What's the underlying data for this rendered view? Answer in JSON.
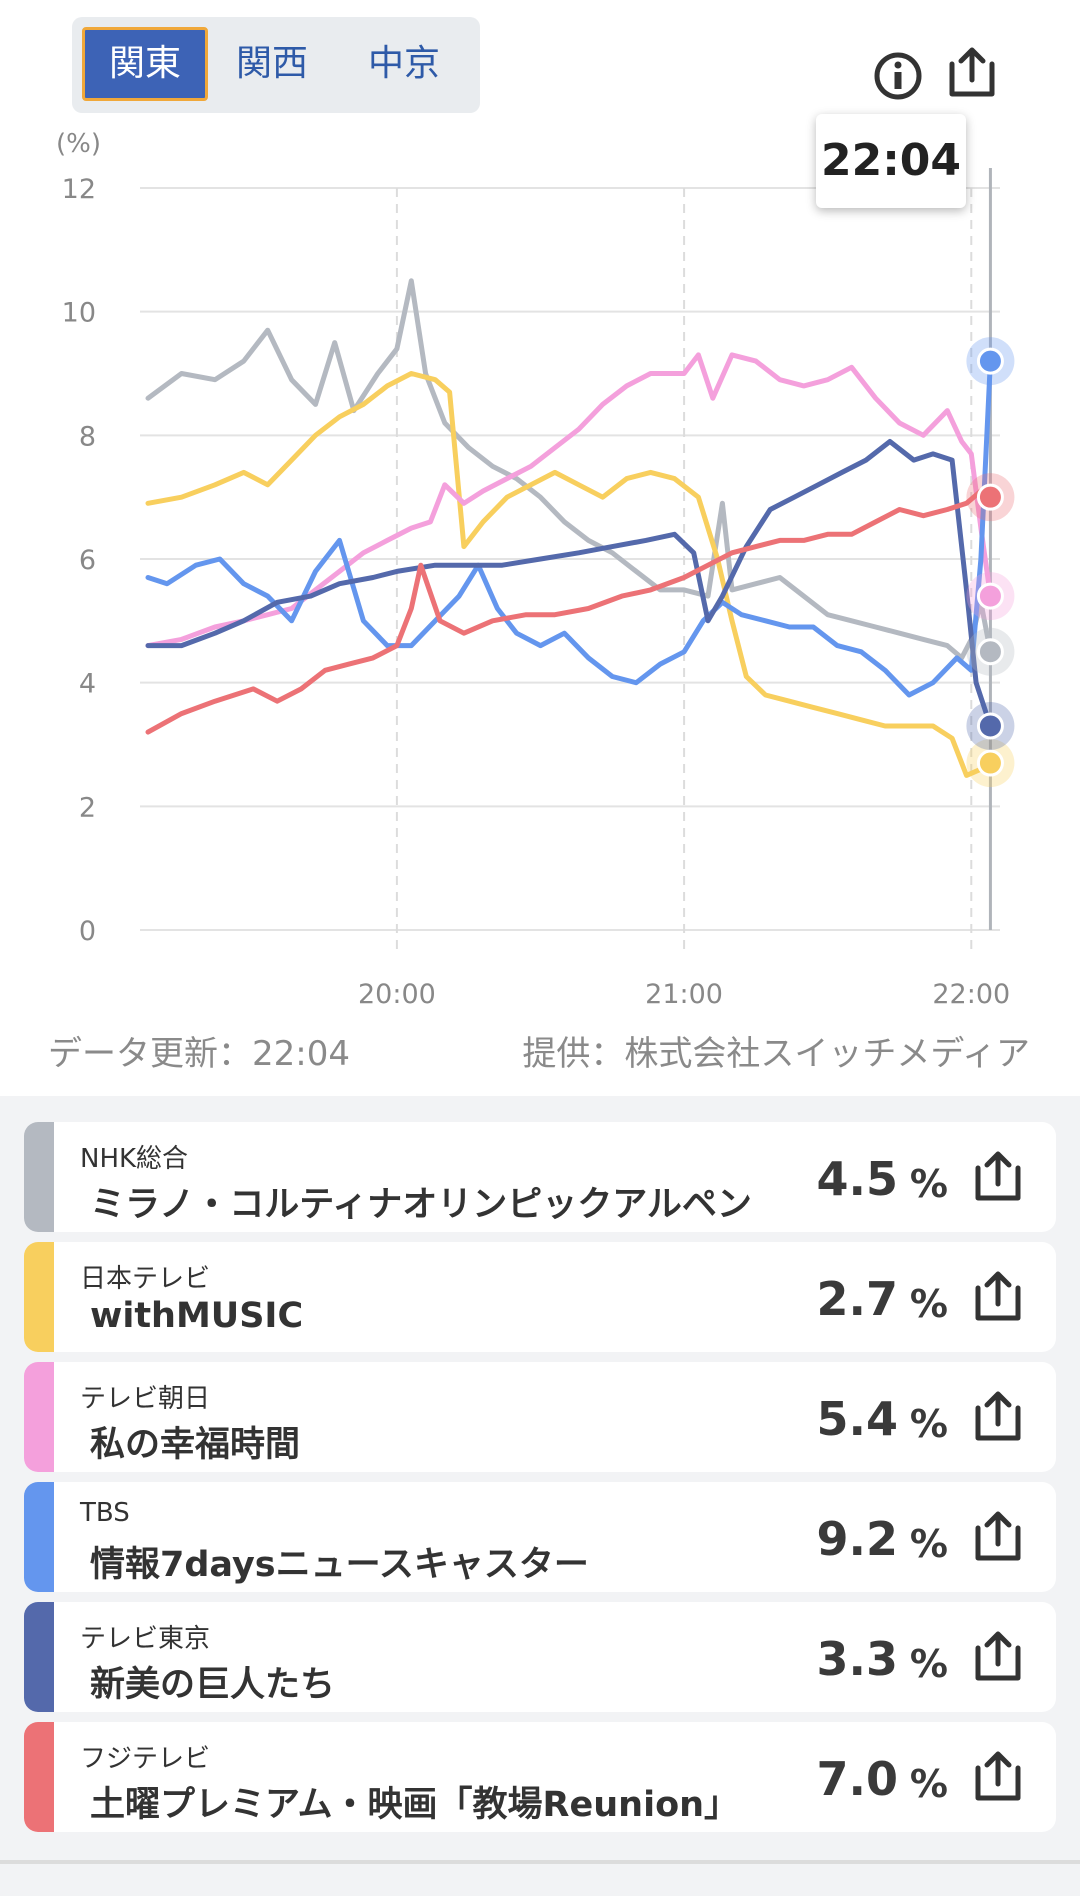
{
  "regions": {
    "tabs": [
      "関東",
      "関西",
      "中京"
    ],
    "active": 0
  },
  "header": {
    "info_icon": "info-circle-icon",
    "share_icon": "share-icon"
  },
  "tooltip": {
    "time": "22:04"
  },
  "chart_data": {
    "type": "line",
    "ylabel": "(%)",
    "ylim": [
      0,
      12
    ],
    "yticks": [
      0,
      2,
      4,
      6,
      8,
      10,
      12
    ],
    "xlim": [
      "19:08",
      "22:06"
    ],
    "xticks": [
      "20:00",
      "21:00",
      "22:00"
    ],
    "cursor": "22:04",
    "grid": true,
    "series": [
      {
        "name": "NHK総合",
        "color": "#b4b9c1",
        "points": [
          [
            "19:08",
            8.6
          ],
          [
            "19:15",
            9.0
          ],
          [
            "19:22",
            8.9
          ],
          [
            "19:28",
            9.2
          ],
          [
            "19:33",
            9.7
          ],
          [
            "19:38",
            8.9
          ],
          [
            "19:43",
            8.5
          ],
          [
            "19:47",
            9.5
          ],
          [
            "19:51",
            8.4
          ],
          [
            "19:56",
            9.0
          ],
          [
            "20:00",
            9.4
          ],
          [
            "20:03",
            10.5
          ],
          [
            "20:06",
            9.0
          ],
          [
            "20:10",
            8.2
          ],
          [
            "20:15",
            7.8
          ],
          [
            "20:20",
            7.5
          ],
          [
            "20:25",
            7.3
          ],
          [
            "20:30",
            7.0
          ],
          [
            "20:35",
            6.6
          ],
          [
            "20:40",
            6.3
          ],
          [
            "20:45",
            6.1
          ],
          [
            "20:50",
            5.8
          ],
          [
            "20:55",
            5.5
          ],
          [
            "21:00",
            5.5
          ],
          [
            "21:05",
            5.4
          ],
          [
            "21:08",
            6.9
          ],
          [
            "21:10",
            5.5
          ],
          [
            "21:15",
            5.6
          ],
          [
            "21:20",
            5.7
          ],
          [
            "21:25",
            5.4
          ],
          [
            "21:30",
            5.1
          ],
          [
            "21:35",
            5.0
          ],
          [
            "21:40",
            4.9
          ],
          [
            "21:45",
            4.8
          ],
          [
            "21:50",
            4.7
          ],
          [
            "21:55",
            4.6
          ],
          [
            "21:58",
            4.4
          ],
          [
            "22:00",
            4.7
          ],
          [
            "22:02",
            5.3
          ],
          [
            "22:04",
            4.5
          ]
        ]
      },
      {
        "name": "日本テレビ",
        "color": "#f8cf5e",
        "points": [
          [
            "19:08",
            6.9
          ],
          [
            "19:15",
            7.0
          ],
          [
            "19:22",
            7.2
          ],
          [
            "19:28",
            7.4
          ],
          [
            "19:33",
            7.2
          ],
          [
            "19:38",
            7.6
          ],
          [
            "19:43",
            8.0
          ],
          [
            "19:48",
            8.3
          ],
          [
            "19:53",
            8.5
          ],
          [
            "19:58",
            8.8
          ],
          [
            "20:03",
            9.0
          ],
          [
            "20:08",
            8.9
          ],
          [
            "20:11",
            8.7
          ],
          [
            "20:14",
            6.2
          ],
          [
            "20:18",
            6.6
          ],
          [
            "20:23",
            7.0
          ],
          [
            "20:28",
            7.2
          ],
          [
            "20:33",
            7.4
          ],
          [
            "20:38",
            7.2
          ],
          [
            "20:43",
            7.0
          ],
          [
            "20:48",
            7.3
          ],
          [
            "20:53",
            7.4
          ],
          [
            "20:58",
            7.3
          ],
          [
            "21:03",
            7.0
          ],
          [
            "21:07",
            6.0
          ],
          [
            "21:10",
            5.0
          ],
          [
            "21:13",
            4.1
          ],
          [
            "21:17",
            3.8
          ],
          [
            "21:22",
            3.7
          ],
          [
            "21:27",
            3.6
          ],
          [
            "21:32",
            3.5
          ],
          [
            "21:37",
            3.4
          ],
          [
            "21:42",
            3.3
          ],
          [
            "21:47",
            3.3
          ],
          [
            "21:52",
            3.3
          ],
          [
            "21:56",
            3.1
          ],
          [
            "21:59",
            2.5
          ],
          [
            "22:02",
            2.6
          ],
          [
            "22:04",
            2.7
          ]
        ]
      },
      {
        "name": "テレビ朝日",
        "color": "#f4a0dc",
        "points": [
          [
            "19:08",
            4.6
          ],
          [
            "19:15",
            4.7
          ],
          [
            "19:22",
            4.9
          ],
          [
            "19:28",
            5.0
          ],
          [
            "19:33",
            5.1
          ],
          [
            "19:38",
            5.2
          ],
          [
            "19:43",
            5.5
          ],
          [
            "19:48",
            5.8
          ],
          [
            "19:53",
            6.1
          ],
          [
            "19:58",
            6.3
          ],
          [
            "20:03",
            6.5
          ],
          [
            "20:07",
            6.6
          ],
          [
            "20:10",
            7.2
          ],
          [
            "20:14",
            6.9
          ],
          [
            "20:18",
            7.1
          ],
          [
            "20:23",
            7.3
          ],
          [
            "20:28",
            7.5
          ],
          [
            "20:33",
            7.8
          ],
          [
            "20:38",
            8.1
          ],
          [
            "20:43",
            8.5
          ],
          [
            "20:48",
            8.8
          ],
          [
            "20:53",
            9.0
          ],
          [
            "20:57",
            9.0
          ],
          [
            "21:00",
            9.0
          ],
          [
            "21:03",
            9.3
          ],
          [
            "21:06",
            8.6
          ],
          [
            "21:10",
            9.3
          ],
          [
            "21:15",
            9.2
          ],
          [
            "21:20",
            8.9
          ],
          [
            "21:25",
            8.8
          ],
          [
            "21:30",
            8.9
          ],
          [
            "21:35",
            9.1
          ],
          [
            "21:40",
            8.6
          ],
          [
            "21:45",
            8.2
          ],
          [
            "21:50",
            8.0
          ],
          [
            "21:55",
            8.4
          ],
          [
            "21:58",
            7.9
          ],
          [
            "22:00",
            7.7
          ],
          [
            "22:02",
            6.5
          ],
          [
            "22:04",
            5.4
          ]
        ]
      },
      {
        "name": "TBS",
        "color": "#6496ee",
        "points": [
          [
            "19:08",
            5.7
          ],
          [
            "19:12",
            5.6
          ],
          [
            "19:18",
            5.9
          ],
          [
            "19:23",
            6.0
          ],
          [
            "19:28",
            5.6
          ],
          [
            "19:33",
            5.4
          ],
          [
            "19:38",
            5.0
          ],
          [
            "19:43",
            5.8
          ],
          [
            "19:48",
            6.3
          ],
          [
            "19:53",
            5.0
          ],
          [
            "19:58",
            4.6
          ],
          [
            "20:03",
            4.6
          ],
          [
            "20:08",
            5.0
          ],
          [
            "20:13",
            5.4
          ],
          [
            "20:17",
            5.9
          ],
          [
            "20:21",
            5.2
          ],
          [
            "20:25",
            4.8
          ],
          [
            "20:30",
            4.6
          ],
          [
            "20:35",
            4.8
          ],
          [
            "20:40",
            4.4
          ],
          [
            "20:45",
            4.1
          ],
          [
            "20:50",
            4.0
          ],
          [
            "20:55",
            4.3
          ],
          [
            "21:00",
            4.5
          ],
          [
            "21:04",
            5.0
          ],
          [
            "21:08",
            5.3
          ],
          [
            "21:12",
            5.1
          ],
          [
            "21:17",
            5.0
          ],
          [
            "21:22",
            4.9
          ],
          [
            "21:27",
            4.9
          ],
          [
            "21:32",
            4.6
          ],
          [
            "21:37",
            4.5
          ],
          [
            "21:42",
            4.2
          ],
          [
            "21:47",
            3.8
          ],
          [
            "21:52",
            4.0
          ],
          [
            "21:57",
            4.4
          ],
          [
            "22:00",
            4.2
          ],
          [
            "22:02",
            6.0
          ],
          [
            "22:04",
            9.2
          ]
        ]
      },
      {
        "name": "テレビ東京",
        "color": "#5469ab",
        "points": [
          [
            "19:08",
            4.6
          ],
          [
            "19:15",
            4.6
          ],
          [
            "19:22",
            4.8
          ],
          [
            "19:28",
            5.0
          ],
          [
            "19:35",
            5.3
          ],
          [
            "19:42",
            5.4
          ],
          [
            "19:48",
            5.6
          ],
          [
            "19:55",
            5.7
          ],
          [
            "20:00",
            5.8
          ],
          [
            "20:08",
            5.9
          ],
          [
            "20:15",
            5.9
          ],
          [
            "20:22",
            5.9
          ],
          [
            "20:30",
            6.0
          ],
          [
            "20:38",
            6.1
          ],
          [
            "20:45",
            6.2
          ],
          [
            "20:52",
            6.3
          ],
          [
            "20:58",
            6.4
          ],
          [
            "21:02",
            6.1
          ],
          [
            "21:05",
            5.0
          ],
          [
            "21:08",
            5.4
          ],
          [
            "21:13",
            6.2
          ],
          [
            "21:18",
            6.8
          ],
          [
            "21:23",
            7.0
          ],
          [
            "21:28",
            7.2
          ],
          [
            "21:33",
            7.4
          ],
          [
            "21:38",
            7.6
          ],
          [
            "21:43",
            7.9
          ],
          [
            "21:48",
            7.6
          ],
          [
            "21:52",
            7.7
          ],
          [
            "21:56",
            7.6
          ],
          [
            "21:59",
            5.5
          ],
          [
            "22:01",
            4.0
          ],
          [
            "22:04",
            3.3
          ]
        ]
      },
      {
        "name": "フジテレビ",
        "color": "#ec7276",
        "points": [
          [
            "19:08",
            3.2
          ],
          [
            "19:15",
            3.5
          ],
          [
            "19:22",
            3.7
          ],
          [
            "19:30",
            3.9
          ],
          [
            "19:35",
            3.7
          ],
          [
            "19:40",
            3.9
          ],
          [
            "19:45",
            4.2
          ],
          [
            "19:50",
            4.3
          ],
          [
            "19:55",
            4.4
          ],
          [
            "20:00",
            4.6
          ],
          [
            "20:03",
            5.2
          ],
          [
            "20:05",
            5.9
          ],
          [
            "20:09",
            5.0
          ],
          [
            "20:14",
            4.8
          ],
          [
            "20:20",
            5.0
          ],
          [
            "20:27",
            5.1
          ],
          [
            "20:33",
            5.1
          ],
          [
            "20:40",
            5.2
          ],
          [
            "20:47",
            5.4
          ],
          [
            "20:53",
            5.5
          ],
          [
            "21:00",
            5.7
          ],
          [
            "21:05",
            5.9
          ],
          [
            "21:10",
            6.1
          ],
          [
            "21:15",
            6.2
          ],
          [
            "21:20",
            6.3
          ],
          [
            "21:25",
            6.3
          ],
          [
            "21:30",
            6.4
          ],
          [
            "21:35",
            6.4
          ],
          [
            "21:40",
            6.6
          ],
          [
            "21:45",
            6.8
          ],
          [
            "21:50",
            6.7
          ],
          [
            "21:55",
            6.8
          ],
          [
            "21:59",
            6.9
          ],
          [
            "22:02",
            7.1
          ],
          [
            "22:04",
            7.0
          ]
        ]
      }
    ]
  },
  "footer": {
    "updated": "データ更新：22:04",
    "provider": "提供：株式会社スイッチメディア"
  },
  "list": [
    {
      "channel": "NHK総合",
      "program": "ミラノ・コルティナオリンピックアルペン",
      "value": "4.5",
      "unit": "%",
      "color": "#b4b9c1"
    },
    {
      "channel": "日本テレビ",
      "program": "withMUSIC",
      "value": "2.7",
      "unit": "%",
      "color": "#f8cf5e"
    },
    {
      "channel": "テレビ朝日",
      "program": "私の幸福時間",
      "value": "5.4",
      "unit": "%",
      "color": "#f4a0dc"
    },
    {
      "channel": "TBS",
      "program": "情報7daysニュースキャスター",
      "value": "9.2",
      "unit": "%",
      "color": "#6496ee"
    },
    {
      "channel": "テレビ東京",
      "program": "新美の巨人たち",
      "value": "3.3",
      "unit": "%",
      "color": "#5469ab"
    },
    {
      "channel": "フジテレビ",
      "program": "土曜プレミアム・映画「教場Reunion」",
      "value": "7.0",
      "unit": "%",
      "color": "#ec7276"
    }
  ]
}
